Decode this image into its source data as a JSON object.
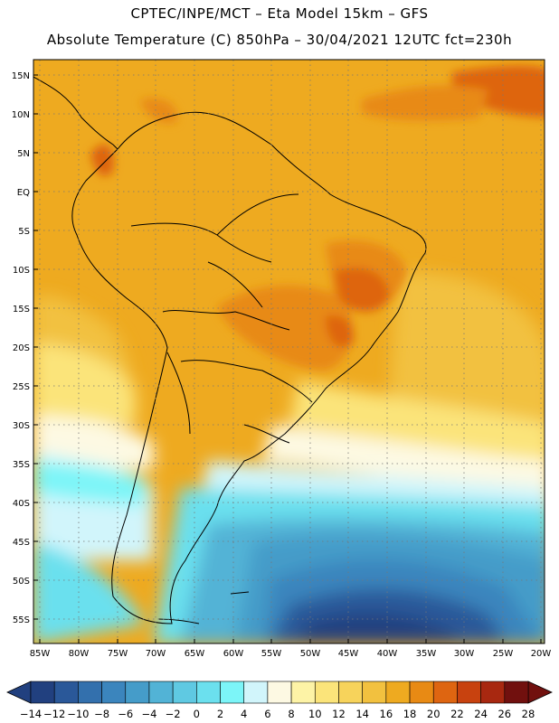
{
  "header": {
    "line1": "CPTEC/INPE/MCT –  Eta Model 15km – GFS",
    "line2": "Absolute Temperature (C) 850hPa – 30/04/2021 12UTC fct=230h"
  },
  "map": {
    "lat_labels": [
      "15N",
      "10N",
      "5N",
      "EQ",
      "5S",
      "10S",
      "15S",
      "20S",
      "25S",
      "30S",
      "35S",
      "40S",
      "45S",
      "50S",
      "55S"
    ],
    "lon_labels": [
      "85W",
      "80W",
      "75W",
      "70W",
      "65W",
      "60W",
      "55W",
      "50W",
      "45W",
      "40W",
      "35W",
      "30W",
      "25W",
      "20W"
    ]
  },
  "colorbar": {
    "labels": [
      "-14",
      "-12",
      "-10",
      "-8",
      "-6",
      "-4",
      "-2",
      "0",
      "2",
      "4",
      "6",
      "8",
      "10",
      "12",
      "14",
      "16",
      "18",
      "20",
      "22",
      "24",
      "26",
      "28"
    ],
    "colors": [
      "#21407f",
      "#2a5899",
      "#3370ad",
      "#3b85bd",
      "#459cc9",
      "#52b3d6",
      "#5fc9e2",
      "#6be0ee",
      "#7cf5f8",
      "#d1f5fb",
      "#fdf9e3",
      "#fdf3a6",
      "#fbe47a",
      "#f7d35b",
      "#f2c13f",
      "#eeaa20",
      "#e88a14",
      "#de6511",
      "#c8420f",
      "#a82810",
      "#8c1a10",
      "#71100e"
    ]
  },
  "chart_data": {
    "type": "heatmap",
    "title": "Absolute Temperature (C) 850hPa – 30/04/2021 12UTC fct=230h",
    "xlabel": "",
    "ylabel": "",
    "xlim": [
      "85W",
      "20W"
    ],
    "ylim": [
      "57S",
      "17N"
    ],
    "color_scale_min": -14,
    "color_scale_max": 28
  }
}
